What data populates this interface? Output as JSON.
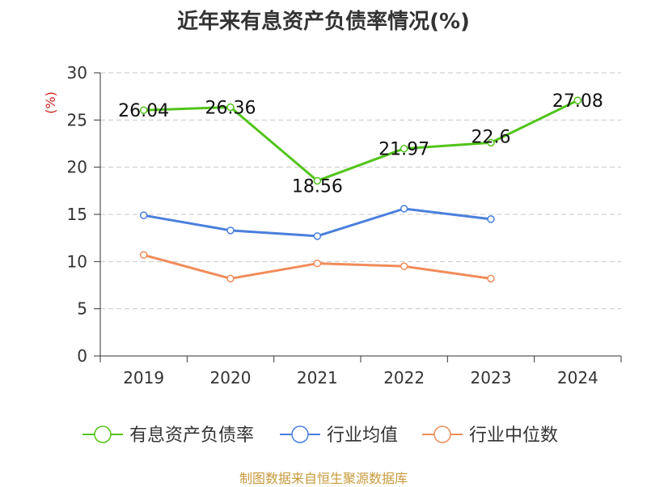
{
  "title": "近年来有息资产负债率情况(%)",
  "footer": "制图数据来自恒生聚源数据库",
  "chart_data": {
    "type": "line",
    "title": "近年来有息资产负债率情况(%)",
    "ylabel": "(%)",
    "xlabel": "",
    "ylim": [
      0,
      30
    ],
    "yticks": [
      0,
      5,
      10,
      15,
      20,
      25,
      30
    ],
    "grid": true,
    "legend_position": "bottom",
    "categories": [
      "2019",
      "2020",
      "2021",
      "2022",
      "2023",
      "2024"
    ],
    "series": [
      {
        "name": "有息资产负债率",
        "color": "#52c41a",
        "show_labels": true,
        "values": [
          26.04,
          26.36,
          18.56,
          21.97,
          22.6,
          27.08
        ],
        "labels": [
          "26.04",
          "26.36",
          "18.56",
          "21.97",
          "22.6",
          "27.08"
        ]
      },
      {
        "name": "行业均值",
        "color": "#4a7fdc",
        "show_labels": false,
        "values": [
          14.9,
          13.3,
          12.7,
          15.6,
          14.5,
          null
        ]
      },
      {
        "name": "行业中位数",
        "color": "#f08c5a",
        "show_labels": false,
        "values": [
          10.7,
          8.2,
          9.8,
          9.5,
          8.2,
          null
        ]
      }
    ]
  }
}
